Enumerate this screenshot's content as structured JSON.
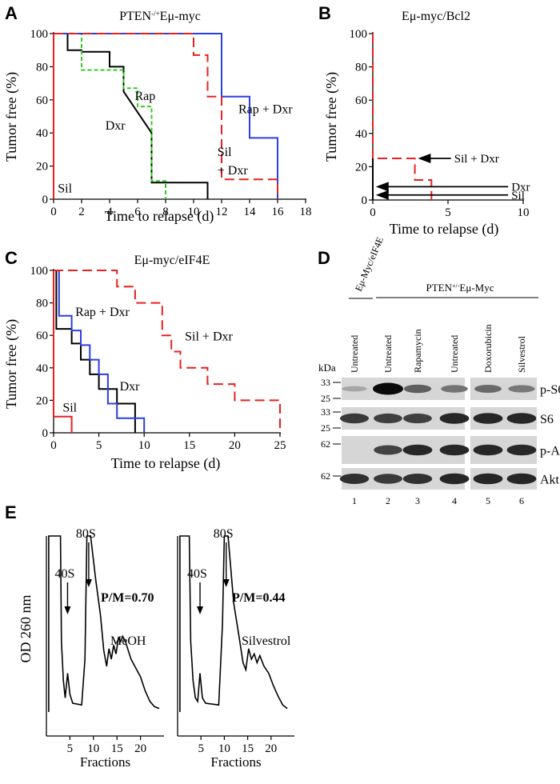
{
  "panels": {
    "A": {
      "label": "A",
      "title_html": "PTEN<tspan baseline-shift='super' font-size='9'>-/+</tspan>Eμ-myc",
      "chart_data": {
        "type": "line",
        "title": "PTEN-/+Eμ-myc",
        "xlabel": "Time to relapse (d)",
        "ylabel": "Tumor free (%)",
        "xlim": [
          0,
          18
        ],
        "ylim": [
          0,
          100
        ],
        "xticks": [
          0,
          2,
          4,
          6,
          8,
          10,
          12,
          14,
          16,
          18
        ],
        "yticks": [
          0,
          20,
          40,
          60,
          80,
          100
        ],
        "series": [
          {
            "name": "Sil",
            "color": "#e8201f",
            "dash": false,
            "steps": [
              [
                0,
                100
              ],
              [
                0,
                0
              ]
            ]
          },
          {
            "name": "Dxr",
            "color": "#000000",
            "dash": false,
            "steps": [
              [
                0,
                100
              ],
              [
                1,
                100
              ],
              [
                1,
                90
              ],
              [
                2,
                90
              ],
              [
                2,
                89
              ],
              [
                4,
                89
              ],
              [
                4,
                80
              ],
              [
                5,
                80
              ],
              [
                5,
                65
              ],
              [
                7,
                40
              ],
              [
                7,
                10
              ],
              [
                11,
                10
              ],
              [
                11,
                0
              ]
            ]
          },
          {
            "name": "Rap",
            "color": "#34c924",
            "dash": true,
            "steps": [
              [
                0,
                100
              ],
              [
                2,
                100
              ],
              [
                2,
                78
              ],
              [
                5,
                78
              ],
              [
                5,
                67
              ],
              [
                6,
                67
              ],
              [
                6,
                56
              ],
              [
                7,
                56
              ],
              [
                7,
                11
              ],
              [
                8,
                11
              ],
              [
                8,
                0
              ]
            ]
          },
          {
            "name": "Rap + Dxr",
            "color": "#2a3fe0",
            "dash": false,
            "steps": [
              [
                0,
                100
              ],
              [
                12,
                100
              ],
              [
                12,
                62
              ],
              [
                14,
                62
              ],
              [
                14,
                37
              ],
              [
                16,
                37
              ],
              [
                16,
                0
              ]
            ]
          },
          {
            "name": "Sil + Dxr",
            "color": "#e8201f",
            "dash": true,
            "steps": [
              [
                0,
                100
              ],
              [
                10,
                100
              ],
              [
                10,
                87
              ],
              [
                11,
                87
              ],
              [
                11,
                62
              ],
              [
                12,
                62
              ],
              [
                12,
                12
              ],
              [
                16,
                12
              ],
              [
                16,
                0
              ]
            ]
          }
        ],
        "annotations": [
          {
            "text": "Sil",
            "x": 0.3,
            "y": 4
          },
          {
            "text": "Dxr",
            "x": 3.7,
            "y": 42
          },
          {
            "text": "Rap",
            "x": 5.8,
            "y": 60
          },
          {
            "text": "Rap + Dxr",
            "x": 13.2,
            "y": 52
          },
          {
            "text": "Sil",
            "x": 11.7,
            "y": 26
          },
          {
            "text": "+ Dxr",
            "x": 11.7,
            "y": 15
          }
        ]
      }
    },
    "B": {
      "label": "B",
      "title": "Eμ-myc/Bcl2",
      "chart_data": {
        "type": "line",
        "title": "Eμ-myc/Bcl2",
        "xlabel": "Time to relapse (d)",
        "ylabel": "Tumor free (%)",
        "xlim": [
          0,
          10
        ],
        "ylim": [
          0,
          100
        ],
        "xticks": [
          0,
          5,
          10
        ],
        "yticks": [
          0,
          20,
          40,
          60,
          80,
          100
        ],
        "series": [
          {
            "name": "Sil + Dxr",
            "color": "#e8201f",
            "dash": true,
            "steps": [
              [
                0,
                100
              ],
              [
                0,
                25
              ],
              [
                2.8,
                25
              ],
              [
                2.8,
                12
              ],
              [
                3.9,
                12
              ],
              [
                3.9,
                0
              ]
            ]
          },
          {
            "name": "Dxr",
            "color": "#000000",
            "dash": false,
            "steps": [
              [
                0,
                25
              ],
              [
                0,
                0
              ]
            ]
          },
          {
            "name": "Sil",
            "color": "#000000",
            "dash": false,
            "steps": [
              [
                0,
                20
              ],
              [
                0,
                0
              ]
            ]
          }
        ],
        "arrows": [
          {
            "text": "Sil + Dxr",
            "y": 25,
            "from_x": 5.2,
            "to_x": 3.0
          },
          {
            "text": "Dxr",
            "y": 8,
            "from_x": 9.0,
            "to_x": 0.2
          },
          {
            "text": "Sil",
            "y": 3,
            "from_x": 9.0,
            "to_x": 0.2
          }
        ]
      }
    },
    "C": {
      "label": "C",
      "title": "Eμ-myc/eIF4E",
      "chart_data": {
        "type": "line",
        "title": "Eμ-myc/eIF4E",
        "xlabel": "Time to relapse (d)",
        "ylabel": "Tumor free (%)",
        "xlim": [
          0,
          25
        ],
        "ylim": [
          0,
          100
        ],
        "xticks": [
          0,
          5,
          10,
          15,
          20,
          25
        ],
        "yticks": [
          0,
          20,
          40,
          60,
          80,
          100
        ],
        "series": [
          {
            "name": "Sil",
            "color": "#e8201f",
            "dash": false,
            "steps": [
              [
                0,
                100
              ],
              [
                0,
                10
              ],
              [
                2,
                10
              ],
              [
                2,
                0
              ]
            ]
          },
          {
            "name": "Dxr",
            "color": "#000000",
            "dash": false,
            "steps": [
              [
                0,
                100
              ],
              [
                0.3,
                100
              ],
              [
                0.3,
                64
              ],
              [
                2,
                64
              ],
              [
                2,
                55
              ],
              [
                3,
                55
              ],
              [
                3,
                45
              ],
              [
                4,
                45
              ],
              [
                4,
                36
              ],
              [
                5,
                36
              ],
              [
                5,
                27
              ],
              [
                7,
                27
              ],
              [
                7,
                18
              ],
              [
                9,
                18
              ],
              [
                9,
                0
              ]
            ]
          },
          {
            "name": "Rap + Dxr",
            "color": "#2a3fe0",
            "dash": false,
            "steps": [
              [
                0,
                100
              ],
              [
                0.6,
                100
              ],
              [
                0.6,
                72
              ],
              [
                2,
                72
              ],
              [
                2,
                63
              ],
              [
                3,
                63
              ],
              [
                3,
                54
              ],
              [
                4,
                54
              ],
              [
                4,
                45
              ],
              [
                5,
                45
              ],
              [
                5,
                36
              ],
              [
                6,
                36
              ],
              [
                6,
                18
              ],
              [
                7,
                18
              ],
              [
                7,
                9
              ],
              [
                10,
                9
              ],
              [
                10,
                0
              ]
            ]
          },
          {
            "name": "Sil + Dxr",
            "color": "#e8201f",
            "dash": true,
            "steps": [
              [
                0,
                100
              ],
              [
                7,
                100
              ],
              [
                7,
                90
              ],
              [
                9,
                90
              ],
              [
                9,
                80
              ],
              [
                12,
                80
              ],
              [
                12,
                60
              ],
              [
                13,
                60
              ],
              [
                13,
                50
              ],
              [
                14,
                50
              ],
              [
                14,
                40
              ],
              [
                17,
                40
              ],
              [
                17,
                30
              ],
              [
                20,
                30
              ],
              [
                20,
                20
              ],
              [
                25,
                20
              ],
              [
                25,
                0
              ]
            ]
          }
        ],
        "annotations": [
          {
            "text": "Sil",
            "x": 1.0,
            "y": 13
          },
          {
            "text": "Dxr",
            "x": 7.3,
            "y": 26
          },
          {
            "text": "Rap + Dxr",
            "x": 2.4,
            "y": 72
          },
          {
            "text": "Sil + Dxr",
            "x": 14.5,
            "y": 57
          }
        ]
      }
    },
    "D": {
      "label": "D",
      "group1": "Eμ-Myc/eIF4E",
      "group2_html": "PTEN<tspan baseline-shift='super' font-size='8'>+/-</tspan>Eμ-Myc",
      "lane_labels": [
        "Untreated",
        "Untreated",
        "Rapamycin",
        "Untreated",
        "Doxorubicin",
        "Silvestrol"
      ],
      "lane_numbers": [
        "1",
        "2",
        "3",
        "4",
        "5",
        "6"
      ],
      "kda": "kDa",
      "rows": [
        {
          "name": "p-S6",
          "markers": [
            "33",
            "25"
          ],
          "bands": [
            0.18,
            1.0,
            0.55,
            0.45,
            0.5,
            0.42
          ]
        },
        {
          "name": "S6",
          "markers": [
            "33",
            "25"
          ],
          "bands": [
            0.75,
            0.72,
            0.72,
            0.85,
            0.85,
            0.85
          ]
        },
        {
          "name": "p-Akt",
          "markers": [
            "62"
          ],
          "bands": [
            0.0,
            0.7,
            0.85,
            0.85,
            0.85,
            0.85
          ]
        },
        {
          "name": "Akt",
          "markers": [
            "62"
          ],
          "bands": [
            0.8,
            0.75,
            0.8,
            0.85,
            0.85,
            0.85
          ]
        }
      ]
    },
    "E": {
      "label": "E",
      "ylabel": "OD 260 nm",
      "profiles": [
        {
          "name": "MeOH",
          "ratio": "P/M=0.70",
          "peak40": "40S",
          "peak80": "80S",
          "xlabel": "Fractions",
          "xticks": [
            5,
            10,
            15,
            20
          ],
          "values": [
            [
              0.5,
              1.0
            ],
            [
              3.0,
              1.0
            ],
            [
              3.2,
              0.4
            ],
            [
              3.6,
              0.18
            ],
            [
              4.0,
              0.08
            ],
            [
              4.5,
              0.22
            ],
            [
              5.0,
              0.1
            ],
            [
              5.6,
              0.05
            ],
            [
              7.5,
              0.04
            ],
            [
              8.2,
              0.3
            ],
            [
              8.6,
              1.0
            ],
            [
              9.4,
              1.0
            ],
            [
              10.5,
              0.75
            ],
            [
              11.5,
              0.55
            ],
            [
              12.2,
              0.35
            ],
            [
              12.8,
              0.26
            ],
            [
              13.3,
              0.36
            ],
            [
              13.8,
              0.3
            ],
            [
              14.3,
              0.38
            ],
            [
              14.8,
              0.33
            ],
            [
              15.3,
              0.42
            ],
            [
              15.8,
              0.4
            ],
            [
              16.2,
              0.43
            ],
            [
              16.8,
              0.4
            ],
            [
              18,
              0.3
            ],
            [
              19,
              0.25
            ],
            [
              20,
              0.2
            ],
            [
              21,
              0.12
            ],
            [
              22,
              0.06
            ],
            [
              23,
              0.03
            ],
            [
              24,
              0.02
            ]
          ]
        },
        {
          "name": "Silvestrol",
          "ratio": "P/M=0.44",
          "peak40": "40S",
          "peak80": "80S",
          "xlabel": "Fractions",
          "xticks": [
            5,
            10,
            15,
            20
          ],
          "values": [
            [
              0.5,
              1.0
            ],
            [
              2.5,
              1.0
            ],
            [
              2.8,
              0.4
            ],
            [
              3.3,
              0.18
            ],
            [
              3.8,
              0.08
            ],
            [
              4.3,
              0.06
            ],
            [
              4.8,
              0.22
            ],
            [
              5.3,
              0.08
            ],
            [
              6.0,
              0.05
            ],
            [
              8.8,
              0.04
            ],
            [
              9.6,
              0.5
            ],
            [
              10.0,
              1.0
            ],
            [
              10.8,
              1.0
            ],
            [
              12.0,
              0.62
            ],
            [
              13.2,
              0.42
            ],
            [
              14.0,
              0.28
            ],
            [
              14.6,
              0.24
            ],
            [
              15.2,
              0.36
            ],
            [
              15.8,
              0.3
            ],
            [
              16.4,
              0.33
            ],
            [
              17.0,
              0.28
            ],
            [
              17.6,
              0.32
            ],
            [
              18.5,
              0.26
            ],
            [
              19.5,
              0.22
            ],
            [
              20.5,
              0.15
            ],
            [
              21.5,
              0.09
            ],
            [
              22.5,
              0.04
            ],
            [
              23.5,
              0.02
            ]
          ]
        }
      ]
    }
  }
}
